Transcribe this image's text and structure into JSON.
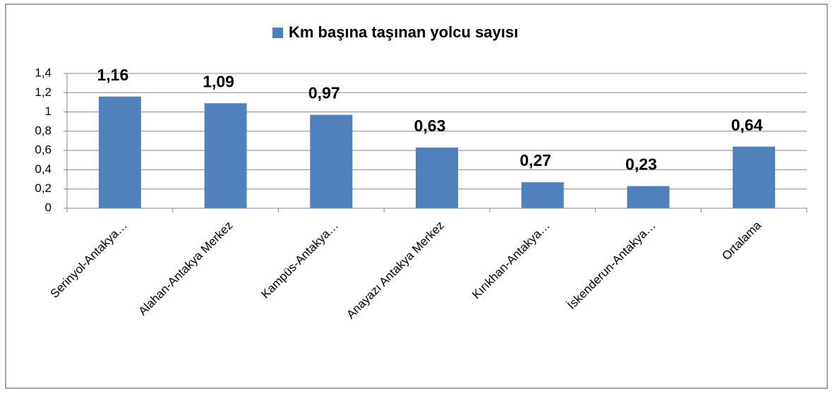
{
  "chart_data": {
    "type": "bar",
    "categories": [
      "Serinyol-Antakya…",
      "Alahan-Antakya Merkez",
      "Kampüs-Antakya…",
      "Anayazı Antakya Merkez",
      "Kırıkhan-Antakya…",
      "İskenderun-Antakya…",
      "Ortalama"
    ],
    "series": [
      {
        "name": "Km başına taşınan yolcu sayısı",
        "color": "#4f81bd",
        "values": [
          1.16,
          1.09,
          0.97,
          0.63,
          0.27,
          0.23,
          0.64
        ],
        "value_labels": [
          "1,16",
          "1,09",
          "0,97",
          "0,63",
          "0,27",
          "0,23",
          "0,64"
        ]
      }
    ],
    "ylim": [
      0,
      1.4
    ],
    "yticks": [
      0,
      {
        "value": 0.2,
        "label": "0,2"
      },
      {
        "value": 0.4,
        "label": "0,4"
      },
      {
        "value": 0.6,
        "label": "0,6"
      },
      {
        "value": 0.8,
        "label": "0,8"
      },
      1,
      {
        "value": 1.2,
        "label": "1,2"
      },
      {
        "value": 1.4,
        "label": "1,4"
      }
    ],
    "grid": true,
    "legend": "top"
  }
}
